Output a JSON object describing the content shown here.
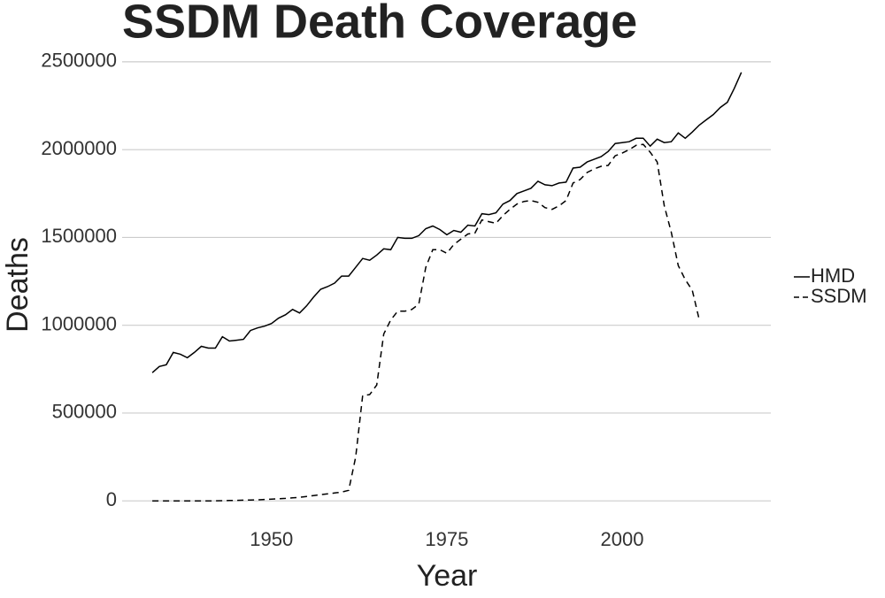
{
  "chart_data": {
    "type": "line",
    "title": "SSDM Death Coverage",
    "x_label": "Year",
    "y_label": "Deaths",
    "x": [
      1933,
      1934,
      1935,
      1936,
      1937,
      1938,
      1939,
      1940,
      1941,
      1942,
      1943,
      1944,
      1945,
      1946,
      1947,
      1948,
      1949,
      1950,
      1951,
      1952,
      1953,
      1954,
      1955,
      1956,
      1957,
      1958,
      1959,
      1960,
      1961,
      1962,
      1963,
      1964,
      1965,
      1966,
      1967,
      1968,
      1969,
      1970,
      1971,
      1972,
      1973,
      1974,
      1975,
      1976,
      1977,
      1978,
      1979,
      1980,
      1981,
      1982,
      1983,
      1984,
      1985,
      1986,
      1987,
      1988,
      1989,
      1990,
      1991,
      1992,
      1993,
      1994,
      1995,
      1996,
      1997,
      1998,
      1999,
      2000,
      2001,
      2002,
      2003,
      2004,
      2005,
      2006,
      2007,
      2008,
      2009,
      2010,
      2011,
      2012,
      2013,
      2014,
      2015,
      2016,
      2017
    ],
    "series": [
      {
        "name": "HMD",
        "color": "#000000",
        "linestyle": "solid",
        "values": [
          730000,
          765000,
          775000,
          845000,
          835000,
          815000,
          845000,
          880000,
          870000,
          870000,
          935000,
          910000,
          915000,
          920000,
          970000,
          985000,
          995000,
          1010000,
          1040000,
          1060000,
          1090000,
          1070000,
          1110000,
          1160000,
          1205000,
          1220000,
          1240000,
          1280000,
          1280000,
          1330000,
          1380000,
          1370000,
          1400000,
          1435000,
          1430000,
          1500000,
          1495000,
          1495000,
          1510000,
          1550000,
          1565000,
          1545000,
          1515000,
          1540000,
          1530000,
          1570000,
          1565000,
          1635000,
          1630000,
          1640000,
          1690000,
          1710000,
          1750000,
          1765000,
          1780000,
          1820000,
          1800000,
          1795000,
          1810000,
          1815000,
          1895000,
          1900000,
          1930000,
          1945000,
          1960000,
          1990000,
          2035000,
          2040000,
          2045000,
          2065000,
          2065000,
          2020000,
          2060000,
          2040000,
          2045000,
          2095000,
          2065000,
          2100000,
          2140000,
          2170000,
          2200000,
          2240000,
          2270000,
          2350000,
          2440000
        ]
      },
      {
        "name": "SSDM",
        "color": "#000000",
        "linestyle": "dashed",
        "values": [
          0,
          0,
          0,
          0,
          0,
          0,
          0,
          0,
          0,
          0,
          1000,
          2000,
          3000,
          4000,
          5000,
          6000,
          8000,
          10000,
          12000,
          14000,
          17000,
          20000,
          25000,
          30000,
          35000,
          40000,
          45000,
          50000,
          60000,
          250000,
          600000,
          605000,
          660000,
          950000,
          1030000,
          1080000,
          1080000,
          1090000,
          1120000,
          1330000,
          1430000,
          1430000,
          1410000,
          1460000,
          1490000,
          1520000,
          1525000,
          1600000,
          1590000,
          1580000,
          1625000,
          1660000,
          1690000,
          1705000,
          1710000,
          1700000,
          1670000,
          1660000,
          1680000,
          1710000,
          1810000,
          1830000,
          1870000,
          1890000,
          1905000,
          1910000,
          1965000,
          1980000,
          2000000,
          2025000,
          2030000,
          1985000,
          1930000,
          1680000,
          1530000,
          1340000,
          1260000,
          1200000,
          1030000,
          null,
          null,
          null,
          null,
          null,
          null
        ]
      }
    ],
    "xlim": [
      1928.7,
      2021.2
    ],
    "xticks": [
      1950,
      1975,
      2000
    ],
    "ylim": [
      -130000,
      2560000
    ],
    "yticks": [
      0,
      500000,
      1000000,
      1500000,
      2000000,
      2500000
    ],
    "grid": true,
    "legend": "right"
  }
}
